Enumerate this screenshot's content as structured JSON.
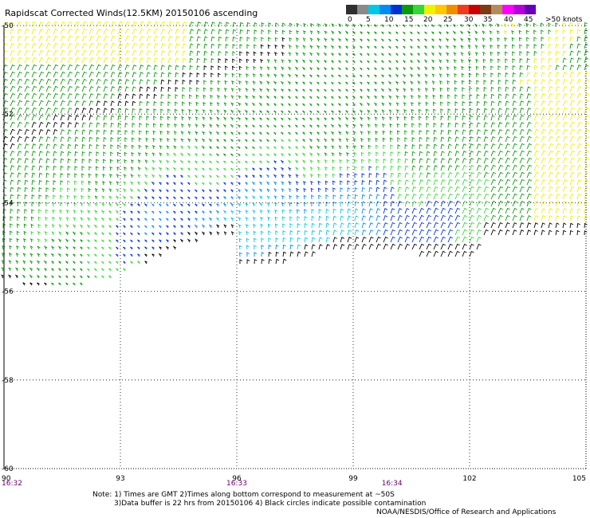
{
  "title": "Rapidscat Corrected Winds(12.5KM) 20150106 ascending",
  "legend": {
    "colors": [
      "#2f2f2f",
      "#8a8a8a",
      "#00c8e6",
      "#008cf0",
      "#0032d2",
      "#0a9a0a",
      "#37d737",
      "#f0f000",
      "#ffc800",
      "#f08c00",
      "#f03c1e",
      "#c80000",
      "#7a3c14",
      "#b48c5a",
      "#ff00ff",
      "#b400dc",
      "#6400b4"
    ],
    "labels": [
      "0",
      "5",
      "10",
      "15",
      "20",
      "25",
      "30",
      "35",
      "40",
      "45",
      ">50 knots"
    ]
  },
  "map": {
    "lon_ticks": [
      "90",
      "93",
      "96",
      "99",
      "102",
      "105"
    ],
    "lat_ticks": [
      "-50",
      "-52",
      "-54",
      "-56",
      "-58",
      "-60"
    ],
    "time_labels": [
      "16:32",
      "16:33",
      "16:34"
    ],
    "time_color": "#6a006a"
  },
  "notes": {
    "line1": "Note: 1) Times are GMT 2)Times along bottom correspond to measurement at ~50S",
    "line2": "3)Data buffer is 22 hrs from 20150106 4) Black circles indicate possible contamination",
    "credit": "NOAA/NESDIS/Office of Research and Applications"
  }
}
